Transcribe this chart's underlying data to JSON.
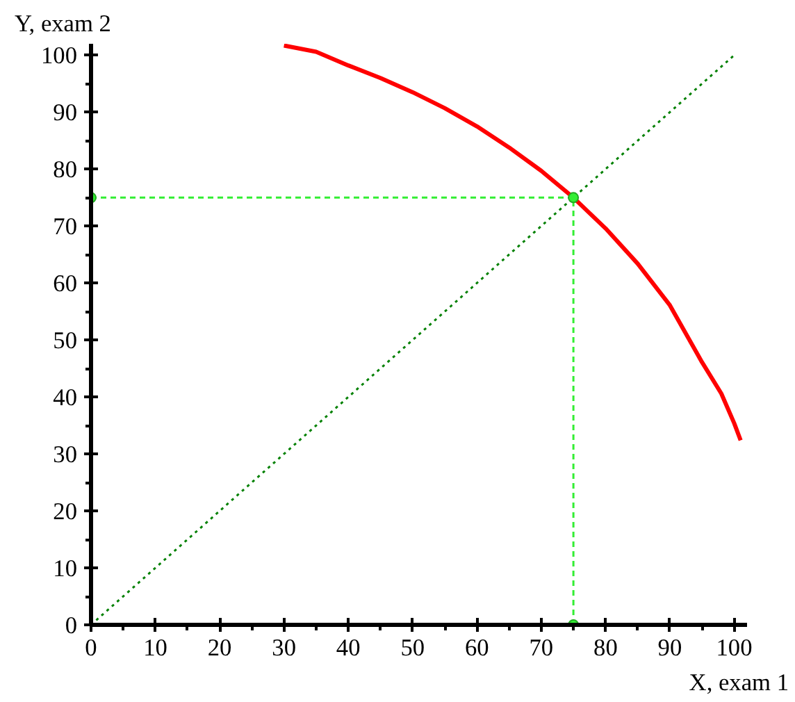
{
  "chart_data": {
    "type": "line",
    "xlabel": "X, exam 1",
    "ylabel": "Y, exam 2",
    "xlim": [
      0,
      102
    ],
    "ylim": [
      0,
      102
    ],
    "xticks": [
      0,
      {
        "value": 5,
        "label": null
      },
      10,
      {
        "value": 15,
        "label": null
      },
      20,
      {
        "value": 25,
        "label": null
      },
      30,
      {
        "value": 35,
        "label": null
      },
      40,
      {
        "value": 45,
        "label": null
      },
      50,
      {
        "value": 55,
        "label": null
      },
      60,
      {
        "value": 65,
        "label": null
      },
      70,
      {
        "value": 75,
        "label": null
      },
      80,
      {
        "value": 85,
        "label": null
      },
      90,
      {
        "value": 95,
        "label": null
      },
      100
    ],
    "yticks": [
      0,
      {
        "value": 5,
        "label": null
      },
      10,
      {
        "value": 15,
        "label": null
      },
      20,
      {
        "value": 25,
        "label": null
      },
      30,
      {
        "value": 35,
        "label": null
      },
      40,
      {
        "value": 45,
        "label": null
      },
      50,
      {
        "value": 55,
        "label": null
      },
      60,
      {
        "value": 65,
        "label": null
      },
      70,
      {
        "value": 75,
        "label": null
      },
      80,
      {
        "value": 85,
        "label": null
      },
      90,
      {
        "value": 95,
        "label": null
      },
      100
    ],
    "grid": false,
    "series": [
      {
        "color": "#008000",
        "line_style": "dotted",
        "x": [
          0,
          100
        ],
        "values": [
          0,
          100
        ]
      },
      {
        "color": "#33ee33",
        "line_style": "dashed",
        "x": [
          0,
          75
        ],
        "values": [
          75,
          75
        ]
      },
      {
        "color": "#33ee33",
        "line_style": "dashed",
        "x": [
          75,
          75
        ],
        "values": [
          0,
          75
        ]
      },
      {
        "color": "#ff0000",
        "line_style": "solid",
        "x": [
          30,
          35,
          40,
          45,
          50,
          55,
          60,
          65,
          70,
          75,
          80,
          85,
          90,
          95,
          98,
          100,
          101
        ],
        "values": [
          101.7,
          100.6,
          98.2,
          96.0,
          93.5,
          90.7,
          87.5,
          83.8,
          79.7,
          75.0,
          69.6,
          63.4,
          56.1,
          46.1,
          40.6,
          35.4,
          32.4
        ]
      },
      {
        "type": "scatter",
        "color": "#33ee33",
        "marker": "circle",
        "x": [
          0,
          75,
          75
        ],
        "values": [
          75,
          75,
          0
        ]
      }
    ]
  }
}
